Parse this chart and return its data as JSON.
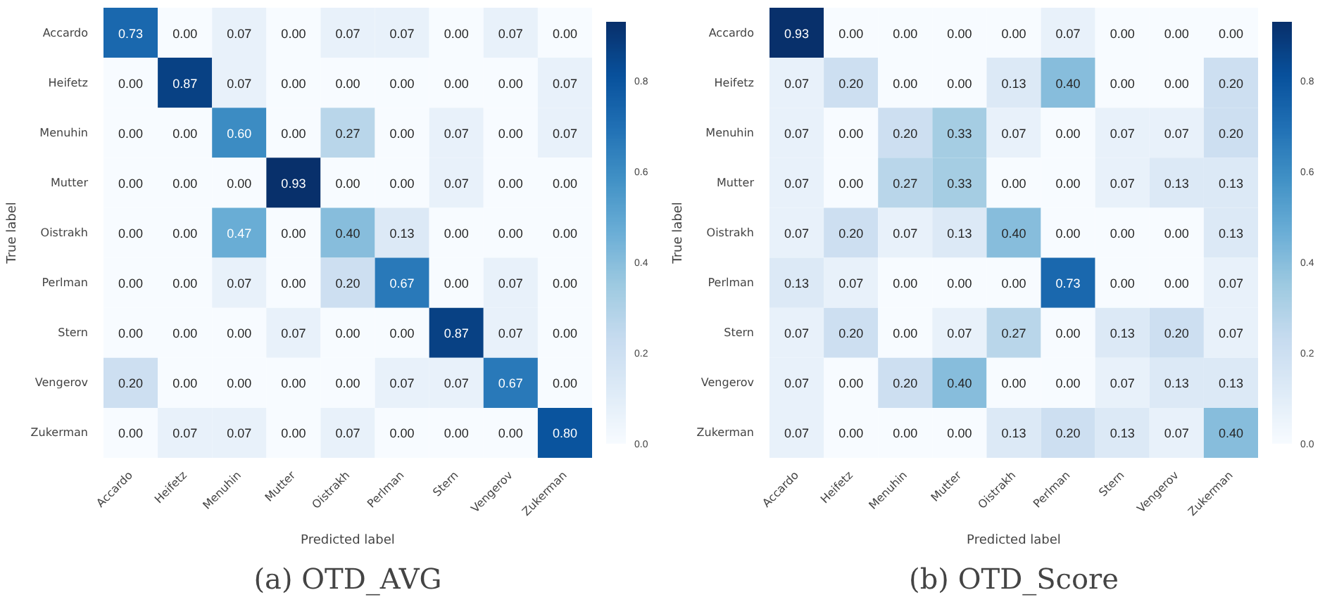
{
  "chart_data": [
    {
      "type": "heatmap",
      "title": "(a) OTD_AVG",
      "xlabel": "Predicted label",
      "ylabel": "True label",
      "categories": [
        "Accardo",
        "Heifetz",
        "Menuhin",
        "Mutter",
        "Oistrakh",
        "Perlman",
        "Stern",
        "Vengerov",
        "Zukerman"
      ],
      "y_categories": [
        "Accardo",
        "Heifetz",
        "Menuhin",
        "Mutter",
        "Oistrakh",
        "Perlman",
        "Stern",
        "Vengerov",
        "Zukerman"
      ],
      "cells": [
        [
          0.73,
          0.0,
          0.07,
          0.0,
          0.07,
          0.07,
          0.0,
          0.07,
          0.0
        ],
        [
          0.0,
          0.87,
          0.07,
          0.0,
          0.0,
          0.0,
          0.0,
          0.0,
          0.07
        ],
        [
          0.0,
          0.0,
          0.6,
          0.0,
          0.27,
          0.0,
          0.07,
          0.0,
          0.07
        ],
        [
          0.0,
          0.0,
          0.0,
          0.93,
          0.0,
          0.0,
          0.07,
          0.0,
          0.0
        ],
        [
          0.0,
          0.0,
          0.47,
          0.0,
          0.4,
          0.13,
          0.0,
          0.0,
          0.0
        ],
        [
          0.0,
          0.0,
          0.07,
          0.0,
          0.2,
          0.67,
          0.0,
          0.07,
          0.0
        ],
        [
          0.0,
          0.0,
          0.0,
          0.07,
          0.0,
          0.0,
          0.87,
          0.07,
          0.0
        ],
        [
          0.2,
          0.0,
          0.0,
          0.0,
          0.0,
          0.07,
          0.07,
          0.67,
          0.0
        ],
        [
          0.0,
          0.07,
          0.07,
          0.0,
          0.07,
          0.0,
          0.0,
          0.0,
          0.8
        ]
      ],
      "cell_labels": [
        [
          "0.73",
          "0.00",
          "0.07",
          "0.00",
          "0.07",
          "0.07",
          "0.00",
          "0.07",
          "0.00"
        ],
        [
          "0.00",
          "0.87",
          "0.07",
          "0.00",
          "0.00",
          "0.00",
          "0.00",
          "0.00",
          "0.07"
        ],
        [
          "0.00",
          "0.00",
          "0.60",
          "0.00",
          "0.27",
          "0.00",
          "0.07",
          "0.00",
          "0.07"
        ],
        [
          "0.00",
          "0.00",
          "0.00",
          "0.93",
          "0.00",
          "0.00",
          "0.07",
          "0.00",
          "0.00"
        ],
        [
          "0.00",
          "0.00",
          "0.47",
          "0.00",
          "0.40",
          "0.13",
          "0.00",
          "0.00",
          "0.00"
        ],
        [
          "0.00",
          "0.00",
          "0.07",
          "0.00",
          "0.20",
          "0.67",
          "0.00",
          "0.07",
          "0.00"
        ],
        [
          "0.00",
          "0.00",
          "0.00",
          "0.07",
          "0.00",
          "0.00",
          "0.87",
          "0.07",
          "0.00"
        ],
        [
          "0.20",
          "0.00",
          "0.00",
          "0.00",
          "0.00",
          "0.07",
          "0.07",
          "0.67",
          "0.00"
        ],
        [
          "0.00",
          "0.07",
          "0.07",
          "0.00",
          "0.07",
          "0.00",
          "0.00",
          "0.00",
          "0.80"
        ]
      ],
      "clim": [
        0,
        0.93
      ],
      "cticks": [
        {
          "value": 0,
          "label": "0.0"
        },
        {
          "value": 0.2,
          "label": "0.2"
        },
        {
          "value": 0.4,
          "label": "0.4"
        },
        {
          "value": 0.6,
          "label": "0.6"
        },
        {
          "value": 0.8,
          "label": "0.8"
        }
      ]
    },
    {
      "type": "heatmap",
      "title": "(b) OTD_Score",
      "xlabel": "Predicted label",
      "ylabel": "True label",
      "categories": [
        "Accardo",
        "Heifetz",
        "Menuhin",
        "Mutter",
        "Oistrakh",
        "Perlman",
        "Stern",
        "Vengerov",
        "Zukerman"
      ],
      "y_categories": [
        "Accardo",
        "Heifetz",
        "Menuhin",
        "Mutter",
        "Oistrakh",
        "Perlman",
        "Stern",
        "Vengerov",
        "Zukerman"
      ],
      "cells": [
        [
          0.93,
          0.0,
          0.0,
          0.0,
          0.0,
          0.07,
          0.0,
          0.0,
          0.0
        ],
        [
          0.07,
          0.2,
          0.0,
          0.0,
          0.13,
          0.4,
          0.0,
          0.0,
          0.2
        ],
        [
          0.07,
          0.0,
          0.2,
          0.33,
          0.07,
          0.0,
          0.07,
          0.07,
          0.2
        ],
        [
          0.07,
          0.0,
          0.27,
          0.33,
          0.0,
          0.0,
          0.07,
          0.13,
          0.13
        ],
        [
          0.07,
          0.2,
          0.07,
          0.13,
          0.4,
          0.0,
          0.0,
          0.0,
          0.13
        ],
        [
          0.13,
          0.07,
          0.0,
          0.0,
          0.0,
          0.73,
          0.0,
          0.0,
          0.07
        ],
        [
          0.07,
          0.2,
          0.0,
          0.07,
          0.27,
          0.0,
          0.13,
          0.2,
          0.07
        ],
        [
          0.07,
          0.0,
          0.2,
          0.4,
          0.0,
          0.0,
          0.07,
          0.13,
          0.13
        ],
        [
          0.07,
          0.0,
          0.0,
          0.0,
          0.13,
          0.2,
          0.13,
          0.07,
          0.4
        ]
      ],
      "cell_labels": [
        [
          "0.93",
          "0.00",
          "0.00",
          "0.00",
          "0.00",
          "0.07",
          "0.00",
          "0.00",
          "0.00"
        ],
        [
          "0.07",
          "0.20",
          "0.00",
          "0.00",
          "0.13",
          "0.40",
          "0.00",
          "0.00",
          "0.20"
        ],
        [
          "0.07",
          "0.00",
          "0.20",
          "0.33",
          "0.07",
          "0.00",
          "0.07",
          "0.07",
          "0.20"
        ],
        [
          "0.07",
          "0.00",
          "0.27",
          "0.33",
          "0.00",
          "0.00",
          "0.07",
          "0.13",
          "0.13"
        ],
        [
          "0.07",
          "0.20",
          "0.07",
          "0.13",
          "0.40",
          "0.00",
          "0.00",
          "0.00",
          "0.13"
        ],
        [
          "0.13",
          "0.07",
          "0.00",
          "0.00",
          "0.00",
          "0.73",
          "0.00",
          "0.00",
          "0.07"
        ],
        [
          "0.07",
          "0.20",
          "0.00",
          "0.07",
          "0.27",
          "0.00",
          "0.13",
          "0.20",
          "0.07"
        ],
        [
          "0.07",
          "0.00",
          "0.20",
          "0.40",
          "0.00",
          "0.00",
          "0.07",
          "0.13",
          "0.13"
        ],
        [
          "0.07",
          "0.00",
          "0.00",
          "0.00",
          "0.13",
          "0.20",
          "0.13",
          "0.07",
          "0.40"
        ]
      ],
      "clim": [
        0,
        0.93
      ],
      "cticks": [
        {
          "value": 0,
          "label": "0.0"
        },
        {
          "value": 0.2,
          "label": "0.2"
        },
        {
          "value": 0.4,
          "label": "0.4"
        },
        {
          "value": 0.6,
          "label": "0.6"
        },
        {
          "value": 0.8,
          "label": "0.8"
        }
      ]
    }
  ]
}
